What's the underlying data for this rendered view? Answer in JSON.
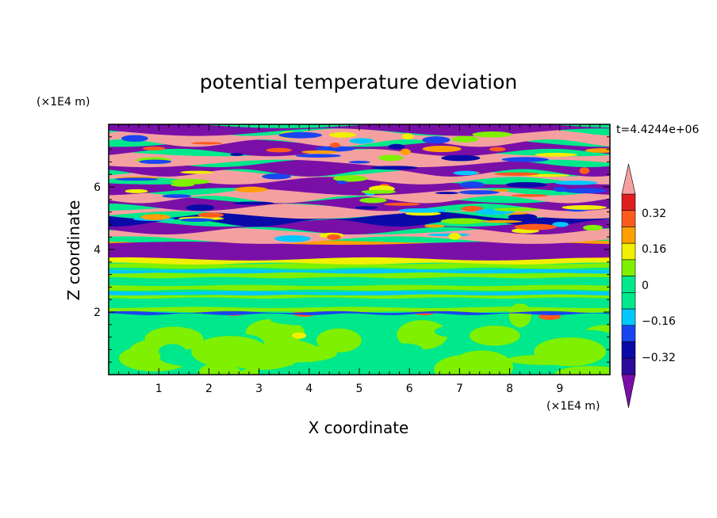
{
  "chart_data": {
    "type": "heatmap",
    "title": "potential temperature deviation",
    "xlabel": "X coordinate",
    "ylabel": "Z coordinate",
    "x_unit": "(×1E4 m)",
    "y_unit": "(×1E4 m)",
    "time_label": "t=4.4244e+06",
    "xlim": [
      0,
      10
    ],
    "ylim": [
      0,
      8
    ],
    "x_ticks": [
      "1",
      "2",
      "3",
      "4",
      "5",
      "6",
      "7",
      "8",
      "9"
    ],
    "y_ticks": [
      "2",
      "4",
      "6"
    ],
    "colorbar": {
      "levels": [
        -0.48,
        -0.4,
        -0.32,
        -0.24,
        -0.16,
        -0.08,
        0,
        0.08,
        0.16,
        0.24,
        0.32,
        0.4,
        0.48
      ],
      "tick_labels": [
        "0.32",
        "0.16",
        "0",
        "−0.16",
        "−0.32"
      ],
      "colors": {
        "below_min": "#7a0fa8",
        "n0_4": "#2e0a9c",
        "n0_32": "#0a0aa8",
        "n0_24": "#1a44f0",
        "n0_16": "#00c8ff",
        "n0_08": "#00e88c",
        "p0_0": "#00e88c",
        "p0_08": "#7ff000",
        "p0_16": "#f0f000",
        "p0_24": "#ffa000",
        "p0_32": "#ff5a1e",
        "p0_4": "#e11e1e",
        "above_max": "#f5a0a0"
      }
    },
    "field_description_bands": [
      {
        "z_range": [
          6.9,
          8.0
        ],
        "dominant": [
          "above_max",
          "below_min"
        ]
      },
      {
        "z_range": [
          4.3,
          6.9
        ],
        "dominant": [
          "below_min",
          "above_max",
          "n0_32",
          "n0_16"
        ]
      },
      {
        "z_range": [
          3.5,
          4.3
        ],
        "dominant": [
          "p0_16",
          "p0_24"
        ]
      },
      {
        "z_range": [
          2.0,
          3.5
        ],
        "dominant": [
          "p0_0",
          "p0_08"
        ]
      },
      {
        "z_range": [
          0.0,
          2.0
        ],
        "dominant": [
          "p0_0",
          "p0_08"
        ]
      }
    ]
  }
}
